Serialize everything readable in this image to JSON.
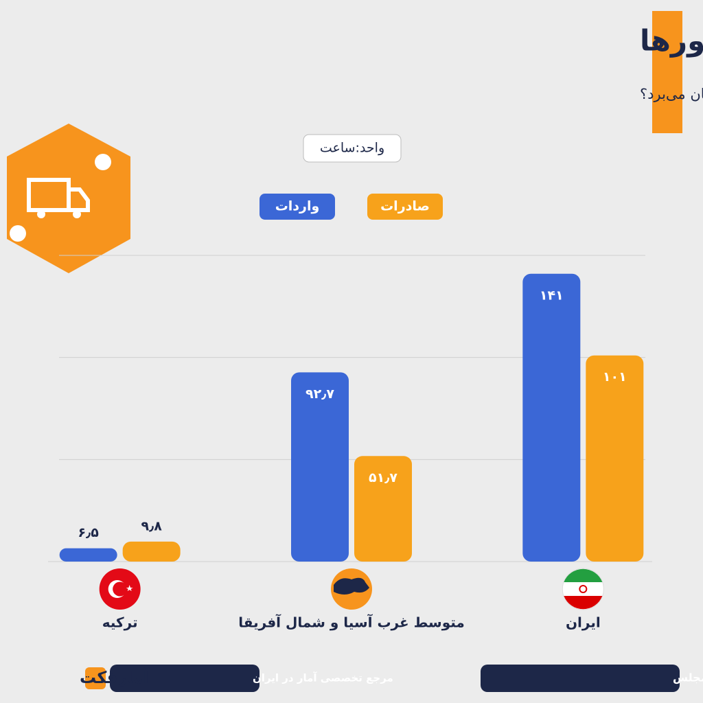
{
  "title": "مدت زمان تبادل کالا در مرز کشورها",
  "subtitle": "تبادل کالا (واردات و صادرات) در مرزها چه میزان زمان می‌برد؟",
  "unit": "واحد:ساعت",
  "chart_data": {
    "type": "bar",
    "categories": [
      "ترکیه",
      "متوسط غرب آسیا و شمال آفریقا",
      "ایران"
    ],
    "series": [
      {
        "name": "واردات",
        "color": "#3b67d6",
        "values": [
          6.5,
          92.7,
          141
        ],
        "value_labels": [
          "۶٫۵",
          "۹۲٫۷",
          "۱۴۱"
        ]
      },
      {
        "name": "صادرات",
        "color": "#f7a21b",
        "values": [
          9.8,
          51.7,
          101
        ],
        "value_labels": [
          "۹٫۸",
          "۵۱٫۷",
          "۱۰۱"
        ]
      }
    ],
    "ylim": [
      0,
      150
    ],
    "yticks": [
      50,
      100,
      150
    ],
    "grid": true
  },
  "footer": {
    "source": "منبع: مرکز پژوهش‌های مجلس",
    "tagline": "مرجع تخصصی آمار در ایران",
    "brand": "آمارفکت"
  }
}
